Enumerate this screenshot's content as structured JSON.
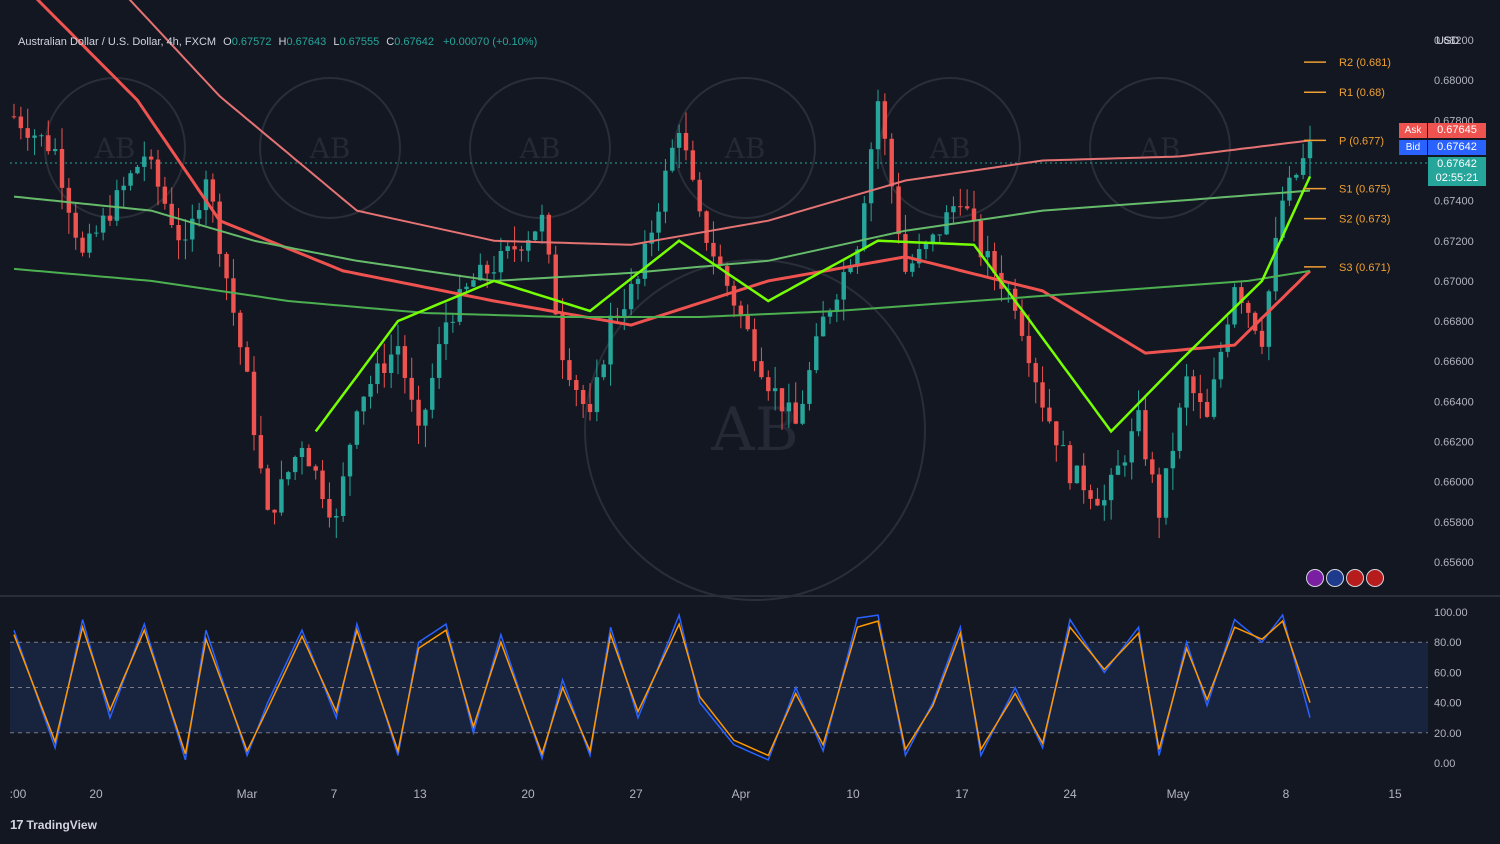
{
  "app": {
    "brand": "TradingView",
    "currency": "USD"
  },
  "header": {
    "symbol": "Australian Dollar / U.S. Dollar, 4h, FXCM",
    "o_label": "O",
    "o_value": "0.67572",
    "h_label": "H",
    "h_value": "0.67643",
    "l_label": "L",
    "l_value": "0.67555",
    "c_label": "C",
    "c_value": "0.67642",
    "change": "+0.00070 (+0.10%)"
  },
  "quote": {
    "ask_label": "Ask",
    "ask_value": "0.67645",
    "bid_label": "Bid",
    "bid_value": "0.67642",
    "last_value": "0.67642",
    "countdown": "02:55:21"
  },
  "colors": {
    "background": "#131722",
    "up_candle": "#26a69a",
    "down_candle": "#ef5350",
    "pivot_orange": "#f0a032",
    "stoch_k": "#2962ff",
    "stoch_d": "#ff9800",
    "ask_bg": "#ef5350",
    "bid_bg": "#2962ff",
    "last_bg": "#26a69a"
  },
  "chart_data": [
    {
      "type": "candlestick",
      "symbol": "AUDUSD",
      "timeframe": "4h",
      "ylim": [
        0.6545,
        0.6825
      ],
      "y_ticks": [
        "0.68200",
        "0.68000",
        "0.67800",
        "0.67600",
        "0.67400",
        "0.67200",
        "0.67000",
        "0.66800",
        "0.66600",
        "0.66400",
        "0.66200",
        "0.66000",
        "0.65800",
        "0.65600"
      ],
      "x_ticks": [
        ":00",
        "20",
        "Mar",
        "7",
        "13",
        "20",
        "27",
        "Apr",
        "10",
        "17",
        "24",
        "May",
        "8",
        "15"
      ],
      "pivots": [
        {
          "label": "R2 (0.681)",
          "value": 0.6809
        },
        {
          "label": "R1 (0.68)",
          "value": 0.6794
        },
        {
          "label": "P (0.677)",
          "value": 0.677
        },
        {
          "label": "S1 (0.675)",
          "value": 0.6746
        },
        {
          "label": "S2 (0.673)",
          "value": 0.6731
        },
        {
          "label": "S3 (0.671)",
          "value": 0.6707
        }
      ],
      "close_path": [
        [
          0,
          0.6782
        ],
        [
          6,
          0.6765
        ],
        [
          10,
          0.6712
        ],
        [
          14,
          0.6735
        ],
        [
          19,
          0.6763
        ],
        [
          25,
          0.6715
        ],
        [
          28,
          0.6754
        ],
        [
          34,
          0.665
        ],
        [
          37,
          0.6582
        ],
        [
          42,
          0.662
        ],
        [
          47,
          0.658
        ],
        [
          50,
          0.664
        ],
        [
          56,
          0.6668
        ],
        [
          59,
          0.6622
        ],
        [
          63,
          0.668
        ],
        [
          67,
          0.67
        ],
        [
          71,
          0.671
        ],
        [
          77,
          0.673
        ],
        [
          80,
          0.6665
        ],
        [
          84,
          0.663
        ],
        [
          87,
          0.668
        ],
        [
          91,
          0.67
        ],
        [
          97,
          0.6778
        ],
        [
          100,
          0.673
        ],
        [
          105,
          0.669
        ],
        [
          110,
          0.665
        ],
        [
          114,
          0.6628
        ],
        [
          118,
          0.668
        ],
        [
          123,
          0.672
        ],
        [
          126,
          0.679
        ],
        [
          130,
          0.6705
        ],
        [
          134,
          0.672
        ],
        [
          138,
          0.6743
        ],
        [
          141,
          0.6715
        ],
        [
          146,
          0.669
        ],
        [
          150,
          0.664
        ],
        [
          154,
          0.6605
        ],
        [
          159,
          0.659
        ],
        [
          164,
          0.663
        ],
        [
          167,
          0.6585
        ],
        [
          171,
          0.665
        ],
        [
          174,
          0.663
        ],
        [
          178,
          0.67
        ],
        [
          182,
          0.6672
        ],
        [
          185,
          0.674
        ],
        [
          189,
          0.6766
        ]
      ],
      "moving_averages": [
        {
          "color": "#ef5350",
          "values": [
            [
              0,
              0.6852
            ],
            [
              18,
              0.679
            ],
            [
              30,
              0.673
            ],
            [
              48,
              0.6705
            ],
            [
              70,
              0.669
            ],
            [
              90,
              0.6678
            ],
            [
              110,
              0.67
            ],
            [
              130,
              0.6712
            ],
            [
              150,
              0.6695
            ],
            [
              165,
              0.6664
            ],
            [
              178,
              0.6668
            ],
            [
              189,
              0.6705
            ]
          ]
        },
        {
          "color": "#e57373",
          "values": [
            [
              0,
              0.6902
            ],
            [
              30,
              0.6792
            ],
            [
              50,
              0.6735
            ],
            [
              70,
              0.672
            ],
            [
              90,
              0.6718
            ],
            [
              110,
              0.673
            ],
            [
              130,
              0.675
            ],
            [
              150,
              0.676
            ],
            [
              170,
              0.6762
            ],
            [
              189,
              0.677
            ]
          ]
        },
        {
          "color": "#66bb6a",
          "values": [
            [
              0,
              0.6742
            ],
            [
              20,
              0.6735
            ],
            [
              35,
              0.672
            ],
            [
              50,
              0.671
            ],
            [
              70,
              0.67
            ],
            [
              90,
              0.6704
            ],
            [
              110,
              0.671
            ],
            [
              130,
              0.6725
            ],
            [
              150,
              0.6735
            ],
            [
              170,
              0.674
            ],
            [
              189,
              0.6745
            ]
          ]
        },
        {
          "color": "#4caf50",
          "values": [
            [
              0,
              0.6706
            ],
            [
              20,
              0.67
            ],
            [
              40,
              0.669
            ],
            [
              60,
              0.6684
            ],
            [
              80,
              0.6682
            ],
            [
              100,
              0.6682
            ],
            [
              120,
              0.6685
            ],
            [
              140,
              0.669
            ],
            [
              160,
              0.6695
            ],
            [
              180,
              0.67
            ],
            [
              189,
              0.6705
            ]
          ]
        },
        {
          "color": "#76ff03",
          "values": [
            [
              44,
              0.6625
            ],
            [
              56,
              0.668
            ],
            [
              70,
              0.67
            ],
            [
              84,
              0.6685
            ],
            [
              97,
              0.672
            ],
            [
              110,
              0.669
            ],
            [
              126,
              0.672
            ],
            [
              140,
              0.6718
            ],
            [
              160,
              0.6625
            ],
            [
              170,
              0.666
            ],
            [
              182,
              0.67
            ],
            [
              189,
              0.6752
            ]
          ]
        }
      ]
    },
    {
      "type": "line",
      "indicator": "Stochastic",
      "ylim": [
        -8,
        108
      ],
      "y_ticks": [
        "100.00",
        "80.00",
        "60.00",
        "40.00",
        "20.00",
        "0.00"
      ],
      "bands": [
        80,
        50,
        20
      ],
      "series": [
        {
          "color": "#2962ff",
          "values": [
            [
              0,
              88
            ],
            [
              6,
              10
            ],
            [
              10,
              95
            ],
            [
              14,
              30
            ],
            [
              19,
              92
            ],
            [
              25,
              2
            ],
            [
              28,
              88
            ],
            [
              34,
              5
            ],
            [
              37,
              40
            ],
            [
              42,
              88
            ],
            [
              47,
              30
            ],
            [
              50,
              92
            ],
            [
              56,
              5
            ],
            [
              59,
              80
            ],
            [
              63,
              92
            ],
            [
              67,
              20
            ],
            [
              71,
              85
            ],
            [
              77,
              3
            ],
            [
              80,
              55
            ],
            [
              84,
              5
            ],
            [
              87,
              90
            ],
            [
              91,
              30
            ],
            [
              97,
              98
            ],
            [
              100,
              40
            ],
            [
              105,
              12
            ],
            [
              110,
              2
            ],
            [
              114,
              50
            ],
            [
              118,
              8
            ],
            [
              123,
              96
            ],
            [
              126,
              98
            ],
            [
              130,
              5
            ],
            [
              134,
              40
            ],
            [
              138,
              90
            ],
            [
              141,
              5
            ],
            [
              146,
              50
            ],
            [
              150,
              10
            ],
            [
              154,
              95
            ],
            [
              159,
              60
            ],
            [
              164,
              90
            ],
            [
              167,
              5
            ],
            [
              171,
              80
            ],
            [
              174,
              38
            ],
            [
              178,
              95
            ],
            [
              182,
              80
            ],
            [
              185,
              98
            ],
            [
              189,
              30
            ]
          ]
        },
        {
          "color": "#ff9800",
          "values": [
            [
              0,
              85
            ],
            [
              6,
              14
            ],
            [
              10,
              90
            ],
            [
              14,
              35
            ],
            [
              19,
              88
            ],
            [
              25,
              6
            ],
            [
              28,
              82
            ],
            [
              34,
              8
            ],
            [
              37,
              36
            ],
            [
              42,
              84
            ],
            [
              47,
              34
            ],
            [
              50,
              88
            ],
            [
              56,
              8
            ],
            [
              59,
              76
            ],
            [
              63,
              88
            ],
            [
              67,
              24
            ],
            [
              71,
              80
            ],
            [
              77,
              6
            ],
            [
              80,
              50
            ],
            [
              84,
              8
            ],
            [
              87,
              85
            ],
            [
              91,
              34
            ],
            [
              97,
              92
            ],
            [
              100,
              44
            ],
            [
              105,
              15
            ],
            [
              110,
              5
            ],
            [
              114,
              46
            ],
            [
              118,
              12
            ],
            [
              123,
              90
            ],
            [
              126,
              94
            ],
            [
              130,
              9
            ],
            [
              134,
              38
            ],
            [
              138,
              86
            ],
            [
              141,
              9
            ],
            [
              146,
              46
            ],
            [
              150,
              13
            ],
            [
              154,
              90
            ],
            [
              159,
              62
            ],
            [
              164,
              86
            ],
            [
              167,
              9
            ],
            [
              171,
              76
            ],
            [
              174,
              42
            ],
            [
              178,
              90
            ],
            [
              182,
              82
            ],
            [
              185,
              94
            ],
            [
              189,
              40
            ]
          ]
        }
      ]
    }
  ]
}
